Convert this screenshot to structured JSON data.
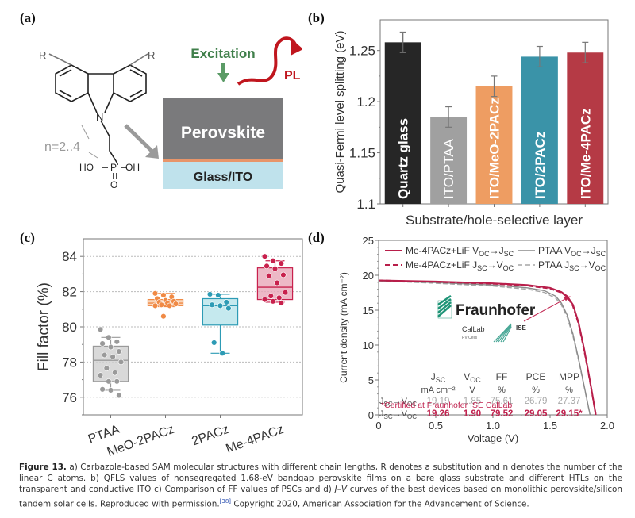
{
  "panels": {
    "a": {
      "label": "(a)",
      "molecule": {
        "substituent_left": "R",
        "substituent_right": "R",
        "nitrogen": "N",
        "chain_label": "n=2..4",
        "phosphonic_left": "HO",
        "phosphorus": "P",
        "phosphonic_right": "OH",
        "oxygen": "O"
      },
      "schematic": {
        "excitation_label": "Excitation",
        "pl_label": "PL",
        "perovskite_label": "Perovskite",
        "substrate_label": "Glass/ITO",
        "colors": {
          "excitation": "#3f7f4a",
          "pl": "#c0161e",
          "perovskite": "#7a7a7c",
          "substrate": "#bfe2ec",
          "interlayer": "#e8956a"
        }
      }
    },
    "b": {
      "label": "(b)"
    },
    "c": {
      "label": "(c)"
    },
    "d": {
      "label": "(d)"
    }
  },
  "chart_data": [
    {
      "id": "b",
      "type": "bar",
      "title": "",
      "xlabel": "Substrate/hole-selective layer",
      "ylabel": "Quasi-Fermi level splitting (eV)",
      "ylim": [
        1.1,
        1.28
      ],
      "yticks": [
        "1.1",
        "1.15",
        "1.2",
        "1.25"
      ],
      "ytick_values": [
        1.1,
        1.15,
        1.2,
        1.25
      ],
      "categories": [
        "Quartz glass",
        "ITO/PTAA",
        "ITO/MeO-2PACz",
        "ITO/2PACz",
        "ITO/Me-4PACz"
      ],
      "values": [
        1.258,
        1.185,
        1.215,
        1.244,
        1.248
      ],
      "errors": [
        0.01,
        0.01,
        0.01,
        0.01,
        0.01
      ],
      "colors": [
        "#262626",
        "#a0a0a0",
        "#ee9d62",
        "#3a93a8",
        "#b53a45"
      ],
      "grid": false
    },
    {
      "id": "c",
      "type": "box",
      "title": "",
      "xlabel": "",
      "ylabel": "Fill factor (%)",
      "ylim": [
        75,
        85
      ],
      "yticks": [
        "76",
        "78",
        "80",
        "82",
        "84"
      ],
      "ytick_values": [
        76,
        78,
        80,
        82,
        84
      ],
      "grid": true,
      "categories": [
        "PTAA",
        "MeO-2PACz",
        "2PACz",
        "Me-4PACz"
      ],
      "colors": [
        "#9a9a9a",
        "#f08a45",
        "#2d9bb5",
        "#c8214d"
      ],
      "fills": [
        "#cfcfcf",
        "#f8c9a6",
        "#b7e3ea",
        "#e9a6b8"
      ],
      "boxes": [
        {
          "q1": 76.9,
          "median": 78.1,
          "q3": 78.9,
          "whisker_low": 76.4,
          "whisker_high": 79.4
        },
        {
          "q1": 81.2,
          "median": 81.35,
          "q3": 81.55,
          "whisker_low": 81.15,
          "whisker_high": 81.9
        },
        {
          "q1": 80.1,
          "median": 81.2,
          "q3": 81.6,
          "whisker_low": 78.5,
          "whisker_high": 81.85
        },
        {
          "q1": 81.55,
          "median": 82.25,
          "q3": 83.35,
          "whisker_low": 81.4,
          "whisker_high": 83.75
        }
      ],
      "points": [
        [
          79.85,
          79.4,
          79.15,
          79.05,
          78.85,
          78.6,
          78.4,
          78.3,
          78.0,
          77.65,
          77.4,
          77.25,
          76.9,
          76.9,
          76.45,
          76.4,
          76.1
        ],
        [
          81.9,
          81.8,
          81.7,
          81.6,
          81.5,
          81.45,
          81.4,
          81.35,
          81.3,
          81.25,
          81.2,
          81.2,
          80.6
        ],
        [
          81.85,
          81.8,
          81.4,
          81.25,
          81.2,
          81.05,
          79.1,
          78.5
        ],
        [
          84.0,
          83.75,
          83.6,
          83.45,
          83.3,
          82.95,
          82.9,
          82.5,
          81.95,
          81.75,
          81.65,
          81.55,
          81.45,
          81.35
        ]
      ]
    },
    {
      "id": "d",
      "type": "line",
      "title": "",
      "xlabel": "Voltage (V)",
      "ylabel": "Current density (mA cm⁻²)",
      "xlim": [
        0,
        2.0
      ],
      "ylim": [
        0,
        25
      ],
      "xticks": [
        "0",
        "0.5",
        "1.0",
        "1.5",
        "2.0"
      ],
      "xtick_values": [
        0,
        0.5,
        1.0,
        1.5,
        2.0
      ],
      "yticks": [
        "0",
        "5",
        "10",
        "15",
        "20",
        "25"
      ],
      "ytick_values": [
        0,
        5,
        10,
        15,
        20,
        25
      ],
      "legend_position": "top",
      "series": [
        {
          "name": "Me-4PACz+LiF Voc→Jsc",
          "color": "#b81e4a",
          "dash": false,
          "x": [
            0,
            0.5,
            1.0,
            1.3,
            1.5,
            1.6,
            1.65,
            1.7,
            1.75,
            1.8,
            1.85,
            1.88,
            1.9
          ],
          "y": [
            19.26,
            19.1,
            18.85,
            18.6,
            18.2,
            17.6,
            17.0,
            15.8,
            13.2,
            9.3,
            4.8,
            2.0,
            0
          ]
        },
        {
          "name": "Me-4PACz+LiF Jsc→Voc",
          "color": "#b81e4a",
          "dash": true,
          "x": [
            0,
            0.5,
            1.0,
            1.3,
            1.5,
            1.6,
            1.65,
            1.7,
            1.75,
            1.8,
            1.85,
            1.88,
            1.9
          ],
          "y": [
            19.26,
            19.05,
            18.8,
            18.5,
            18.1,
            17.5,
            16.9,
            15.6,
            13.0,
            9.1,
            4.7,
            1.9,
            0
          ]
        },
        {
          "name": "PTAA Voc→Jsc",
          "color": "#8a8a8a",
          "dash": false,
          "x": [
            0,
            0.5,
            1.0,
            1.3,
            1.45,
            1.55,
            1.6,
            1.65,
            1.7,
            1.75,
            1.8,
            1.83,
            1.85
          ],
          "y": [
            19.19,
            18.95,
            18.6,
            18.2,
            17.8,
            17.0,
            16.0,
            14.3,
            11.6,
            8.0,
            4.0,
            1.6,
            0
          ]
        },
        {
          "name": "PTAA Jsc→Voc",
          "color": "#a5a5a5",
          "dash": true,
          "x": [
            0,
            0.5,
            1.0,
            1.3,
            1.45,
            1.55,
            1.6,
            1.65,
            1.7,
            1.75,
            1.8,
            1.83,
            1.85
          ],
          "y": [
            19.19,
            18.85,
            18.45,
            18.0,
            17.55,
            16.7,
            15.7,
            14.0,
            11.3,
            7.8,
            3.9,
            1.5,
            0
          ]
        }
      ],
      "legend": [
        {
          "text": "Me-4PACz+LiF V",
          "sub1": "OC",
          "arrow": "→J",
          "sub2": "SC",
          "dash": false,
          "color": "#b81e4a"
        },
        {
          "text": "Me-4PACz+LiF J",
          "sub1": "SC",
          "arrow": "→V",
          "sub2": "OC",
          "dash": true,
          "color": "#b81e4a"
        },
        {
          "text": "PTAA V",
          "sub1": "OC",
          "arrow": "→J",
          "sub2": "SC",
          "dash": false,
          "color": "#8a8a8a"
        },
        {
          "text": "PTAA J",
          "sub1": "SC",
          "arrow": "→V",
          "sub2": "OC",
          "dash": true,
          "color": "#a5a5a5"
        }
      ],
      "table": {
        "headers": [
          "J",
          "V",
          "FF",
          "PCE",
          "MPP"
        ],
        "header_subs": [
          "SC",
          "OC",
          "",
          "",
          ""
        ],
        "units": [
          "mA cm⁻²",
          "V",
          "%",
          "%",
          "%"
        ],
        "rows": [
          {
            "label": "J",
            "label_sub1": "SC",
            "label_arrow": "→V",
            "label_sub2": "OC",
            "color": "#a8a8a8",
            "values": [
              "19.19",
              "1.85",
              "75.61",
              "26.79",
              "27.37"
            ]
          },
          {
            "label": "J",
            "label_sub1": "SC",
            "label_arrow": "→V",
            "label_sub2": "OC",
            "color": "#c0234f",
            "values": [
              "19.26",
              "1.90",
              "79.52",
              "29.05",
              "29.15*"
            ]
          }
        ]
      },
      "annotation": "*Certified at Fraunhofer ISE CalLab",
      "logo": {
        "name": "Fraunhofer",
        "sub1": "CalLab",
        "sub2": "PV Cells",
        "sub3": "ISE"
      }
    }
  ],
  "caption": {
    "figure_label": "Figure 13.",
    "text_part1": " a) Carbazole-based SAM molecular structures with different chain lengths, R denotes a substitution and n denotes the number of the linear C atoms. b) QFLS values of nonsegregated 1.68-eV bandgap perovskite films on a bare glass substrate and different HTLs on the transparent and conductive ITO c) Comparison of FF values of PSCs and d) ",
    "jv_italic": "J–V",
    "text_part2": " curves of the best devices based on monolithic perovskite/silicon tandem solar cells. Reproduced with permission.",
    "ref": "[38]",
    "text_part3": " Copyright 2020, American Association for the Advancement of Science."
  }
}
